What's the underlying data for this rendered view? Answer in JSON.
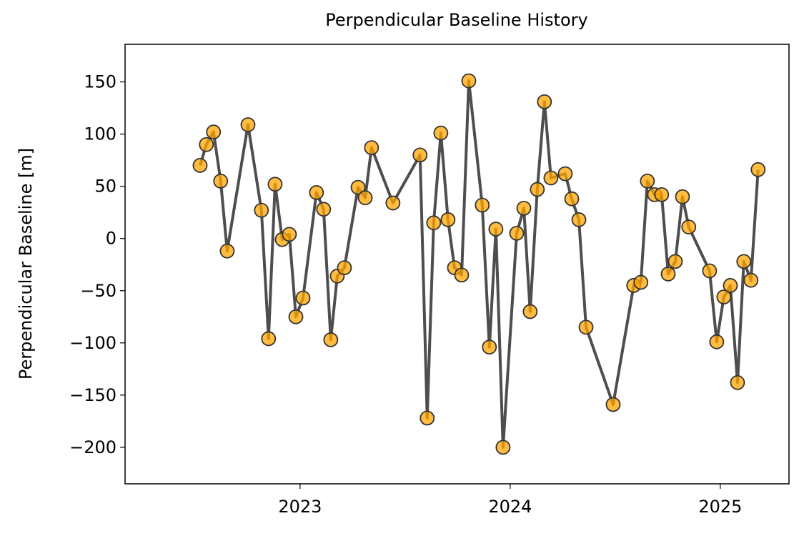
{
  "chart_data": {
    "type": "line",
    "title": "Perpendicular Baseline History",
    "y_label": "Perpendicular Baseline [m]",
    "series": [
      {
        "color": "#444444",
        "marker_color": "#ffa500",
        "x": [
          2022.524,
          2022.554,
          2022.588,
          2022.622,
          2022.653,
          2022.752,
          2022.816,
          2022.85,
          2022.881,
          2022.915,
          2022.949,
          2022.98,
          2023.014,
          2023.078,
          2023.112,
          2023.146,
          2023.177,
          2023.211,
          2023.276,
          2023.31,
          2023.34,
          2023.442,
          2023.571,
          2023.605,
          2023.636,
          2023.67,
          2023.704,
          2023.735,
          2023.769,
          2023.803,
          2023.867,
          2023.901,
          2023.932,
          2023.966,
          2024.031,
          2024.065,
          2024.095,
          2024.129,
          2024.163,
          2024.194,
          2024.262,
          2024.293,
          2024.327,
          2024.361,
          2024.49,
          2024.588,
          2024.622,
          2024.653,
          2024.687,
          2024.721,
          2024.752,
          2024.786,
          2024.82,
          2024.85,
          2024.949,
          2024.983,
          2025.017,
          2025.048,
          2025.082,
          2025.112,
          2025.146,
          2025.18
        ],
        "values": [
          70,
          90,
          102,
          55,
          -12,
          109,
          27,
          -96,
          52,
          -1,
          4,
          -75,
          -57,
          44,
          28,
          -97,
          -36,
          -28,
          49,
          39,
          87,
          34,
          80,
          -172,
          15,
          101,
          18,
          -28,
          -35,
          151,
          32,
          -104,
          9,
          -200,
          5,
          29,
          -70,
          47,
          131,
          58,
          62,
          38,
          18,
          -85,
          -159,
          -45,
          -42,
          55,
          42,
          42,
          -34,
          -22,
          40,
          11,
          -31,
          -99,
          -56,
          -45,
          -138,
          -22,
          -40,
          66
        ]
      }
    ],
    "xlim": [
      2022.167,
      2025.327
    ],
    "xticks": [
      2023,
      2024,
      2025
    ],
    "ylim": [
      -235,
      186
    ],
    "yticks": [
      -200,
      -150,
      -100,
      -50,
      0,
      50,
      100,
      150
    ]
  }
}
